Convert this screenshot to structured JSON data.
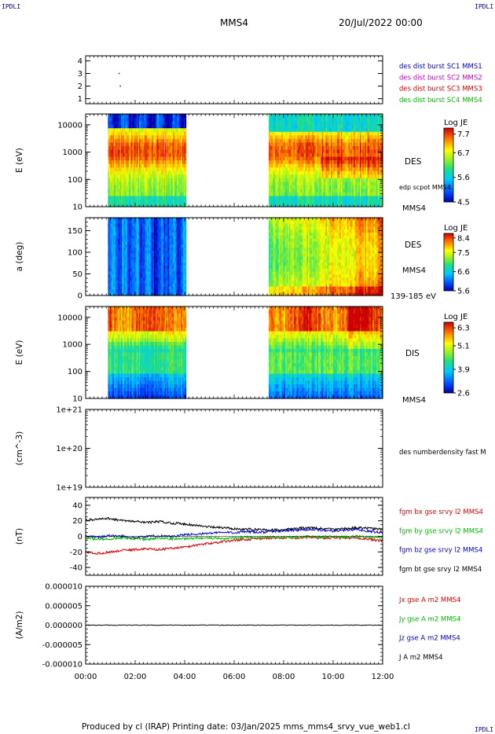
{
  "corner_label": "IPDLI",
  "header": {
    "spacecraft": "MMS4",
    "date": "20/Jul/2022 00:00"
  },
  "footer": {
    "text": "Produced by cl (IRAP)   Printing date: 03/Jan/2025   mms_mms4_srvy_vue_web1.cl"
  },
  "chart_data": [
    {
      "type": "scatter",
      "panel": "burst-indicator",
      "yticks": [
        "1",
        "2",
        "3",
        "4"
      ],
      "ylim": [
        0.6,
        4.4
      ],
      "x": [
        1.35,
        1.4
      ],
      "y": [
        3,
        2
      ],
      "series_labels": [
        {
          "name": "des dist burst SC1 MMS1",
          "color": "#0000cc"
        },
        {
          "name": "des dist burst SC2 MMS2",
          "color": "#cc00cc"
        },
        {
          "name": "des dist burst SC3 MMS3",
          "color": "#dd0000"
        },
        {
          "name": "des dist burst SC4 MMS4",
          "color": "#00bb00"
        }
      ]
    },
    {
      "type": "heatmap",
      "panel": "des-energy-spectrogram",
      "ylabel": "E (eV)",
      "yscale": "log",
      "yticks": [
        "10",
        "100",
        "1000",
        "10000"
      ],
      "right_label": "DES",
      "right_sublabel": "edp scpot MMS4",
      "bottom_tag": "MMS4",
      "data_intervals_hours": [
        [
          0.9,
          4.05
        ],
        [
          7.4,
          12.0
        ]
      ],
      "colorbar": {
        "title": "Log JE",
        "ticks": [
          "7.7",
          "6.7",
          "5.6",
          "4.5"
        ]
      }
    },
    {
      "type": "heatmap",
      "panel": "des-pitch-angle",
      "ylabel": "a (deg)",
      "yticks": [
        "0",
        "50",
        "100",
        "150"
      ],
      "ylim": [
        0,
        180
      ],
      "right_label": "DES",
      "right_sublabel": "MMS4",
      "bottom_tag": "139-185 eV",
      "data_intervals_hours": [
        [
          0.9,
          4.05
        ],
        [
          7.4,
          12.0
        ]
      ],
      "colorbar": {
        "title": "Log JE",
        "ticks": [
          "8.4",
          "7.5",
          "6.6",
          "5.6"
        ]
      }
    },
    {
      "type": "heatmap",
      "panel": "dis-energy-spectrogram",
      "ylabel": "E (eV)",
      "yscale": "log",
      "yticks": [
        "10",
        "100",
        "1000",
        "10000"
      ],
      "right_label": "DIS",
      "bottom_tag": "MMS4",
      "data_intervals_hours": [
        [
          0.9,
          4.05
        ],
        [
          7.4,
          12.0
        ]
      ],
      "colorbar": {
        "title": "Log JE",
        "ticks": [
          "6.3",
          "5.1",
          "3.9",
          "2.6"
        ]
      }
    },
    {
      "type": "line",
      "panel": "density",
      "ylabel": "(cm^-3)",
      "yscale": "log",
      "yticks": [
        "1e+19",
        "1e+20",
        "1e+21"
      ],
      "series_labels": [
        {
          "name": "des numberdensity fast M",
          "color": "#000000"
        }
      ]
    },
    {
      "type": "line",
      "panel": "magnetic-field",
      "ylabel": "(nT)",
      "yticks": [
        "-40",
        "-20",
        "0",
        "20",
        "40"
      ],
      "ylim": [
        -50,
        50
      ],
      "x": [
        0,
        0.5,
        1,
        1.5,
        2,
        2.5,
        3,
        3.5,
        4,
        4.5,
        5,
        5.5,
        6,
        6.5,
        7,
        7.5,
        8,
        8.5,
        9,
        9.5,
        10,
        10.5,
        11,
        11.5,
        12
      ],
      "series": [
        {
          "name": "fgm bx gse srvy l2 MMS4",
          "color": "#dd0000",
          "values": [
            -20,
            -22,
            -20,
            -18,
            -17,
            -16,
            -17,
            -15,
            -14,
            -11,
            -9,
            -7,
            -5,
            -4,
            -3,
            -2,
            -2,
            -2,
            -1,
            -2,
            -2,
            -2,
            -2,
            -4,
            -6
          ]
        },
        {
          "name": "fgm by gse srvy l2 MMS4",
          "color": "#00bb00",
          "values": [
            -2,
            -4,
            -3,
            -2,
            -3,
            -4,
            -2,
            -3,
            -3,
            -2,
            -2,
            -3,
            -2,
            -1,
            -2,
            -1,
            -2,
            -1,
            0,
            -1,
            0,
            -1,
            0,
            -1,
            -2
          ]
        },
        {
          "name": "fgm bz gse srvy l2 MMS4",
          "color": "#0000cc",
          "values": [
            0,
            -1,
            1,
            0,
            -2,
            0,
            1,
            0,
            2,
            3,
            4,
            5,
            5,
            6,
            5,
            6,
            7,
            8,
            9,
            8,
            7,
            8,
            9,
            6,
            5
          ]
        },
        {
          "name": "fgm bt gse srvy l2 MMS4",
          "color": "#000000",
          "values": [
            21,
            22,
            23,
            20,
            19,
            18,
            19,
            17,
            16,
            14,
            12,
            11,
            10,
            9,
            9,
            8,
            9,
            10,
            11,
            10,
            9,
            10,
            11,
            10,
            9
          ]
        }
      ]
    },
    {
      "type": "line",
      "panel": "current-density",
      "ylabel": "(A/m2)",
      "yticks": [
        "-0.000010",
        "-0.000005",
        "0.000000",
        "0.000005",
        "0.000010"
      ],
      "ylim": [
        -1e-05,
        1e-05
      ],
      "xticks": [
        "00:00",
        "02:00",
        "04:00",
        "06:00",
        "08:00",
        "10:00",
        "12:00"
      ],
      "series_labels": [
        {
          "name": "Jx gse A m2 MMS4",
          "color": "#dd0000"
        },
        {
          "name": "Jy gse A m2 MMS4",
          "color": "#00bb00"
        },
        {
          "name": "Jz gse A m2 MMS4",
          "color": "#0000cc"
        },
        {
          "name": "J A m2 MMS4",
          "color": "#000000"
        }
      ]
    }
  ]
}
